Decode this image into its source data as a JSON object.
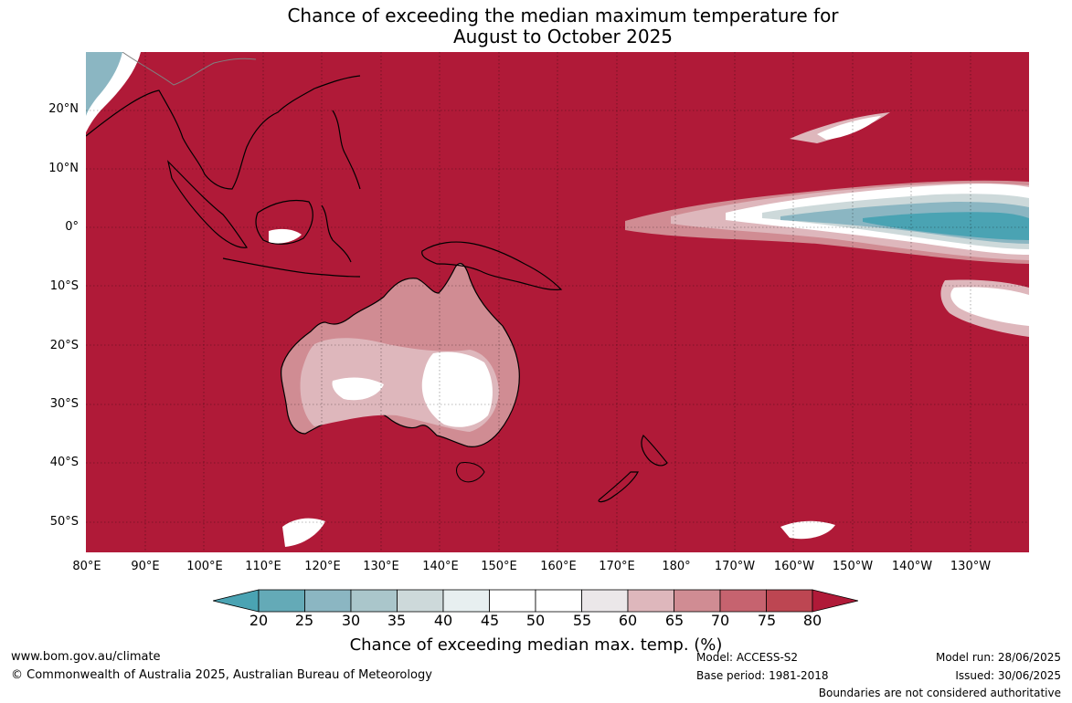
{
  "title": {
    "line1": "Chance of exceeding the median maximum temperature for",
    "line2": "August to October 2025"
  },
  "map": {
    "lat_labels": [
      "20°N",
      "10°N",
      "0°",
      "10°S",
      "20°S",
      "30°S",
      "40°S",
      "50°S"
    ],
    "lon_labels": [
      "80°E",
      "90°E",
      "100°E",
      "110°E",
      "120°E",
      "130°E",
      "140°E",
      "150°E",
      "160°E",
      "170°E",
      "180°",
      "170°W",
      "160°W",
      "150°W",
      "140°W",
      "130°W"
    ],
    "background_color": "#b01a38"
  },
  "colorbar": {
    "ticks": [
      "20",
      "25",
      "30",
      "35",
      "40",
      "45",
      "50",
      "55",
      "60",
      "65",
      "70",
      "75",
      "80"
    ],
    "colors": [
      "#4aa3b3",
      "#64aab7",
      "#8bb6c2",
      "#aac6cb",
      "#cdd9da",
      "#e7eff0",
      "#ffffff",
      "#ffffff",
      "#ebe7e9",
      "#deb7bc",
      "#d08c93",
      "#c6636f",
      "#bd4652",
      "#b01a38"
    ],
    "label": "Chance of exceeding median max. temp. (%)"
  },
  "footer": {
    "website": "www.bom.gov.au/climate",
    "copyright": "© Commonwealth of Australia 2025, Australian Bureau of Meteorology",
    "model": "Model: ACCESS-S2",
    "base_period": "Base period: 1981-2018",
    "model_run": "Model run: 28/06/2025",
    "issued": "Issued: 30/06/2025",
    "disclaimer": "Boundaries are not considered authoritative"
  }
}
